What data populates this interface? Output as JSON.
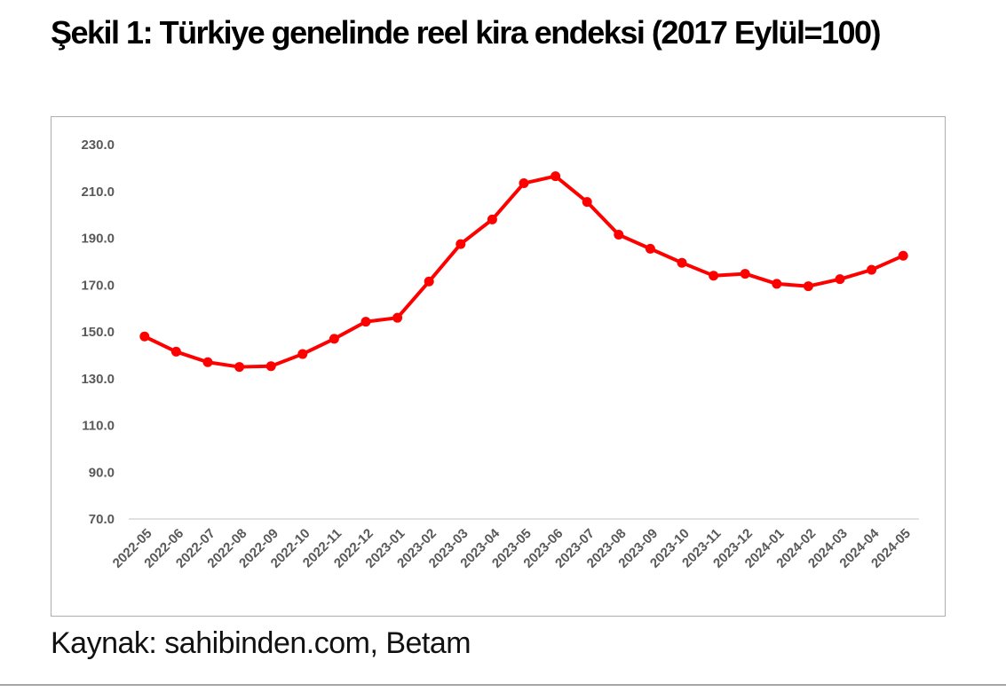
{
  "page": {
    "title": "Şekil 1: Türkiye genelinde reel kira endeksi (2017 Eylül=100)",
    "source": "Kaynak: sahibinden.com, Betam"
  },
  "colors": {
    "series_red": "#ff0000",
    "axis_text": "#595959",
    "axis_line": "#d6d6d6",
    "chart_border": "#adadad",
    "divider": "#a6a6a6"
  },
  "chart_data": {
    "type": "line",
    "title": "Şekil 1: Türkiye genelinde reel kira endeksi (2017 Eylül=100)",
    "categories": [
      "2022-05",
      "2022-06",
      "2022-07",
      "2022-08",
      "2022-09",
      "2022-10",
      "2022-11",
      "2022-12",
      "2023-01",
      "2023-02",
      "2023-03",
      "2023-04",
      "2023-05",
      "2023-06",
      "2023-07",
      "2023-08",
      "2023-09",
      "2023-10",
      "2023-11",
      "2023-12",
      "2024-01",
      "2024-02",
      "2024-03",
      "2024-04",
      "2024-05"
    ],
    "series": [
      {
        "color": "#ff0000",
        "marker": "circle",
        "values": [
          148.0,
          141.5,
          137.0,
          135.0,
          135.3,
          140.5,
          147.0,
          154.3,
          156.0,
          171.5,
          187.5,
          198.0,
          213.5,
          216.5,
          205.5,
          191.5,
          185.5,
          179.5,
          174.0,
          174.8,
          170.5,
          169.5,
          172.5,
          176.5,
          182.5
        ]
      }
    ],
    "xlabel": "",
    "ylabel": "",
    "ylim": [
      70,
      230
    ],
    "yticks": [
      "230.0",
      "210.0",
      "190.0",
      "170.0",
      "150.0",
      "130.0",
      "110.0",
      "90.0",
      "70.0"
    ],
    "x_label_rotation_deg": -45,
    "grid": false,
    "legend_position": "none"
  }
}
